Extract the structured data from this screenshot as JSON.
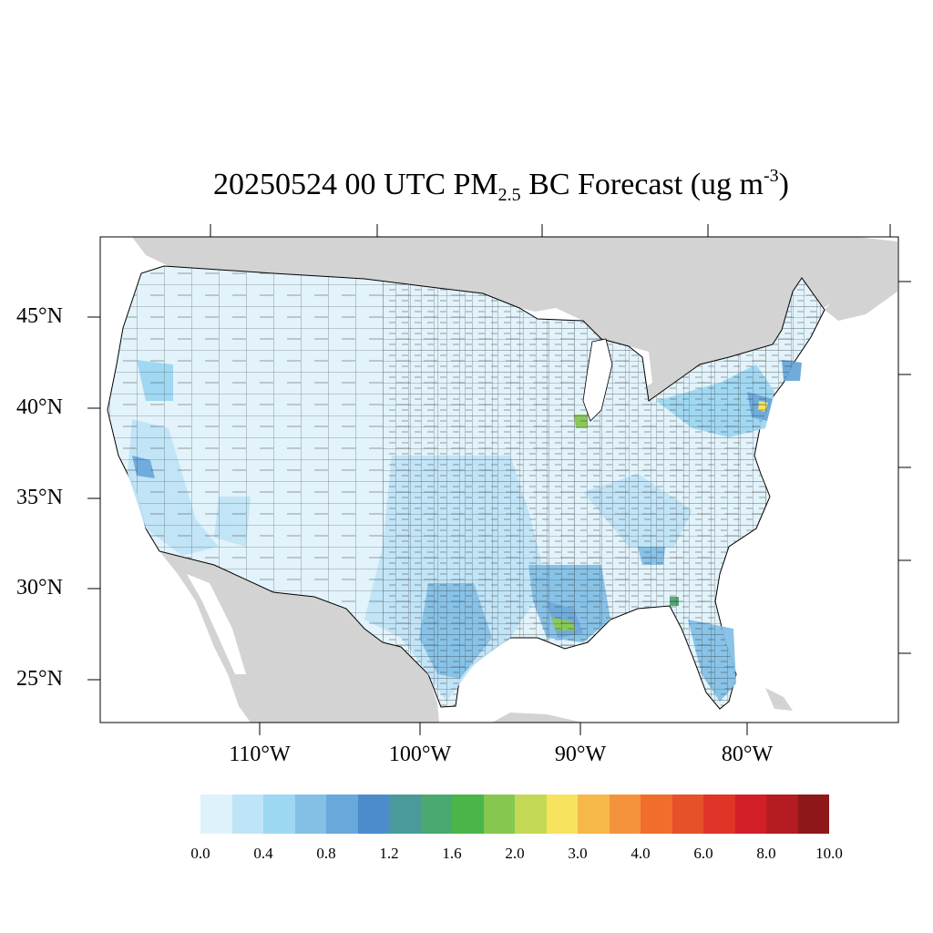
{
  "title": {
    "prefix": "20250524 00 UTC PM",
    "subscript": "2.5",
    "middle": " BC Forecast (ug m",
    "superscript": "-3",
    "suffix": ")"
  },
  "latitude_labels": [
    "45°N",
    "40°N",
    "35°N",
    "30°N",
    "25°N"
  ],
  "longitude_labels": [
    "110°W",
    "100°W",
    "90°W",
    "80°W"
  ],
  "colorbar": {
    "colors": [
      "#def2fb",
      "#c0e4f7",
      "#9dd7f3",
      "#84c0e6",
      "#69a8da",
      "#4c8cca",
      "#4a9a9c",
      "#4aa96e",
      "#4bb54a",
      "#86c74f",
      "#c3d955",
      "#f7e35d",
      "#f7b84a",
      "#f4923b",
      "#f06d2c",
      "#e8502a",
      "#df3427",
      "#d21f27",
      "#b41c22",
      "#8e1719"
    ],
    "labels": [
      "0.0",
      "0.4",
      "0.8",
      "1.2",
      "1.6",
      "2.0",
      "3.0",
      "4.0",
      "6.0",
      "8.0",
      "10.0"
    ]
  },
  "colors": {
    "land_other": "#d3d3d3",
    "water": "#ffffff",
    "us_base": "#e2f3fb",
    "county_lines": "#222222"
  }
}
